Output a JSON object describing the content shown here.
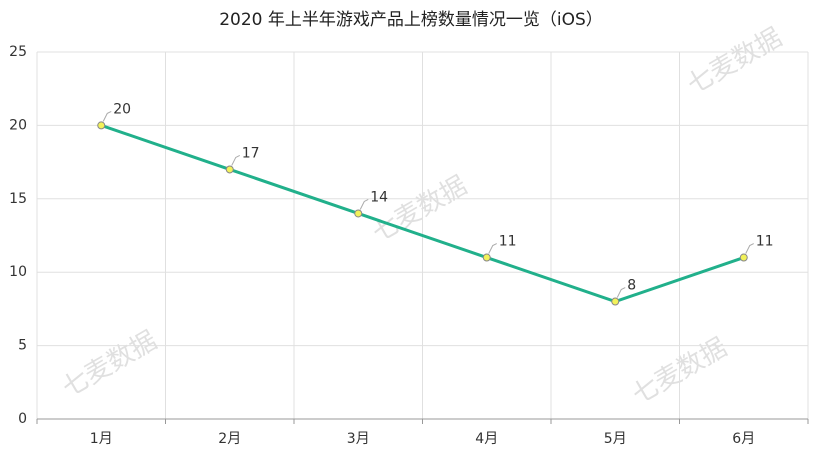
{
  "chart_data": {
    "type": "line",
    "title": "2020 年上半年游戏产品上榜数量情况一览（iOS）",
    "categories": [
      "1月",
      "2月",
      "3月",
      "4月",
      "5月",
      "6月"
    ],
    "series": [
      {
        "name": null,
        "color": "#21b08b",
        "marker_color": "#f2f25a",
        "values": [
          20,
          17,
          14,
          11,
          8,
          11
        ]
      }
    ],
    "ylim": [
      0,
      25
    ],
    "yticks": [
      0,
      5,
      10,
      15,
      20,
      25
    ],
    "grid": true,
    "watermark": "七麦数据"
  }
}
